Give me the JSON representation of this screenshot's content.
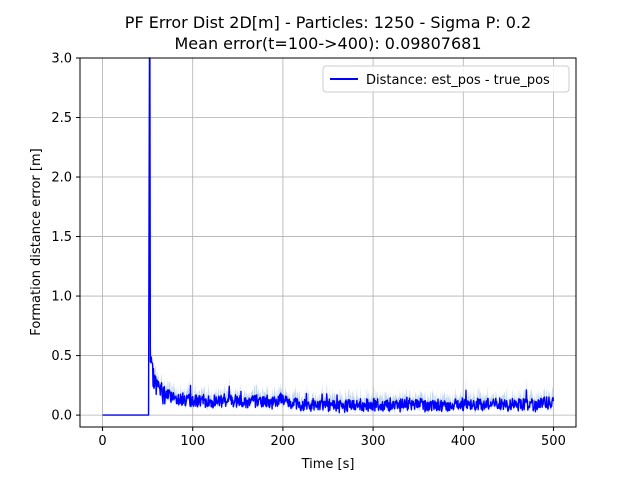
{
  "chart_data": {
    "type": "line",
    "title": "PF Error Dist 2D[m] - Particles: 1250 - Sigma P: 0.2",
    "subtitle": "Mean error(t=100->400): 0.09807681",
    "xlabel": "Time [s]",
    "ylabel": "Formation distance error [m]",
    "xlim": [
      -25,
      525
    ],
    "ylim": [
      -0.1,
      3.0
    ],
    "xticks": [
      0,
      100,
      200,
      300,
      400,
      500
    ],
    "yticks": [
      0.0,
      0.5,
      1.0,
      1.5,
      2.0,
      2.5,
      3.0
    ],
    "xtick_labels": [
      "0",
      "100",
      "200",
      "300",
      "400",
      "500"
    ],
    "ytick_labels": [
      "0.0",
      "0.5",
      "1.0",
      "1.5",
      "2.0",
      "2.5",
      "3.0"
    ],
    "grid": true,
    "legend_position": "top-right",
    "series": [
      {
        "name": "Distance: est_pos - true_pos",
        "color": "#0000ff",
        "band_color": "#aac4ea",
        "x": [
          0,
          10,
          20,
          30,
          40,
          51,
          52,
          52.5,
          53,
          55,
          58,
          62,
          66,
          70,
          80,
          90,
          100,
          110,
          120,
          130,
          140,
          150,
          160,
          170,
          180,
          190,
          200,
          210,
          220,
          230,
          240,
          250,
          260,
          270,
          280,
          290,
          300,
          310,
          320,
          330,
          340,
          350,
          360,
          370,
          380,
          390,
          400,
          410,
          420,
          430,
          440,
          450,
          460,
          470,
          480,
          490,
          500
        ],
        "y": [
          0,
          0,
          0,
          0,
          0,
          0,
          3.0,
          3.0,
          0.45,
          0.35,
          0.28,
          0.22,
          0.19,
          0.17,
          0.15,
          0.13,
          0.12,
          0.12,
          0.11,
          0.12,
          0.13,
          0.12,
          0.11,
          0.12,
          0.11,
          0.1,
          0.14,
          0.1,
          0.09,
          0.08,
          0.09,
          0.08,
          0.07,
          0.08,
          0.09,
          0.08,
          0.09,
          0.08,
          0.09,
          0.08,
          0.1,
          0.09,
          0.08,
          0.09,
          0.08,
          0.09,
          0.09,
          0.08,
          0.09,
          0.1,
          0.09,
          0.08,
          0.09,
          0.09,
          0.08,
          0.1,
          0.1
        ]
      }
    ]
  }
}
